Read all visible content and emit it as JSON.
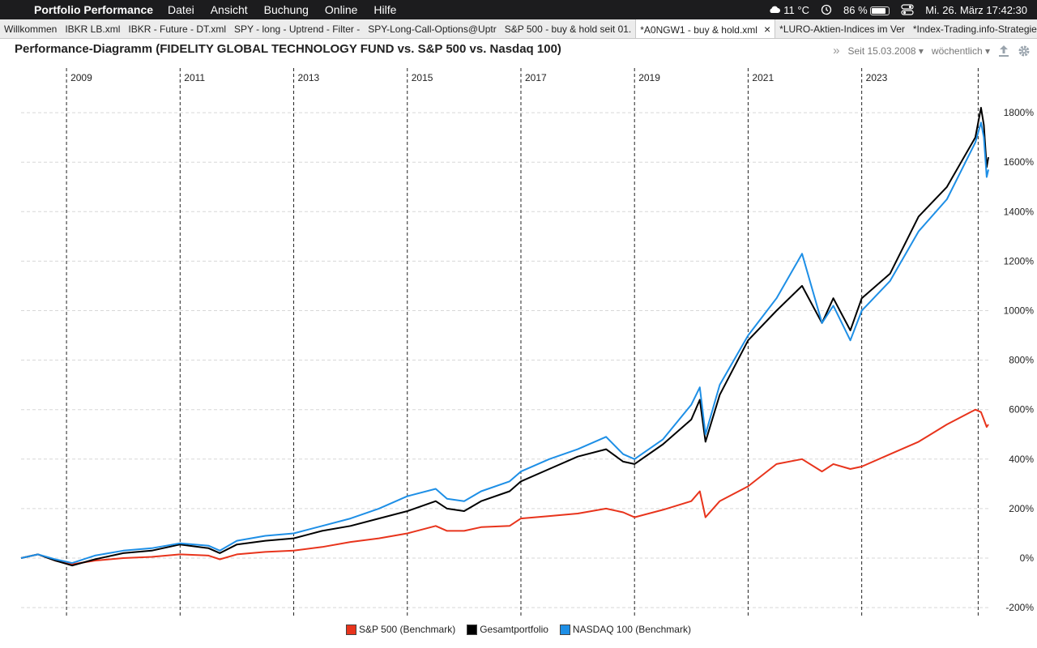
{
  "menubar": {
    "app_name": "Portfolio Performance",
    "menus": [
      "Datei",
      "Ansicht",
      "Buchung",
      "Online",
      "Hilfe"
    ],
    "weather": "11 °C",
    "battery": "86 %",
    "battery_level": 0.86,
    "clock": "Mi. 26. März  17:42:30",
    "icons": [
      "apple-icon",
      "cloud-icon",
      "time-machine-icon",
      "battery-icon",
      "control-center-icon"
    ]
  },
  "tabs": [
    {
      "label": "Willkommen",
      "active": false
    },
    {
      "label": "IBKR LB.xml",
      "active": false
    },
    {
      "label": "IBKR - Future - DT.xml",
      "active": false
    },
    {
      "label": "SPY - long - Uptrend - Filter -",
      "active": false
    },
    {
      "label": "SPY-Long-Call-Options@Uptr",
      "active": false
    },
    {
      "label": "S&P 500 - buy & hold seit 01.",
      "active": false
    },
    {
      "label": "*A0NGW1 - buy & hold.xml",
      "active": true
    },
    {
      "label": "*LURO-Aktien-Indices im Ver",
      "active": false
    },
    {
      "label": "*Index-Trading.info-Strategie",
      "active": false
    }
  ],
  "view": {
    "title": "Performance-Diagramm (FIDELITY GLOBAL TECHNOLOGY FUND vs. S&P 500 vs. Nasdaq 100)",
    "period": "Seit 15.03.2008",
    "interval": "wöchentlich",
    "icons": [
      "expand-icon",
      "dropdown-icon",
      "export-icon",
      "gear-icon"
    ]
  },
  "chart_data": {
    "type": "line",
    "x_unit": "year",
    "xlim": [
      2008.2,
      2025.23
    ],
    "ylim": [
      -200,
      1900
    ],
    "y_ticks": [
      -200,
      0,
      200,
      400,
      600,
      800,
      1000,
      1200,
      1400,
      1600,
      1800
    ],
    "y_tick_labels": [
      "-200%",
      "0%",
      "200%",
      "400%",
      "600%",
      "800%",
      "1000%",
      "1200%",
      "1400%",
      "1600%",
      "1800%"
    ],
    "x_year_lines": [
      2009,
      2011,
      2013,
      2015,
      2017,
      2019,
      2021,
      2023
    ],
    "x_year_labels": [
      "2009",
      "2011",
      "2013",
      "2015",
      "2017",
      "2019",
      "2021",
      "2023"
    ],
    "grid": true,
    "legend_position": "bottom",
    "series": [
      {
        "name": "S&P 500 (Benchmark)",
        "color": "#e8341c",
        "x": [
          2008.2,
          2008.5,
          2008.8,
          2009.1,
          2009.5,
          2010.0,
          2010.5,
          2011.0,
          2011.5,
          2011.7,
          2012.0,
          2012.5,
          2013.0,
          2013.5,
          2014.0,
          2014.5,
          2015.0,
          2015.5,
          2015.7,
          2016.0,
          2016.3,
          2016.8,
          2017.0,
          2017.5,
          2018.0,
          2018.5,
          2018.8,
          2019.0,
          2019.5,
          2020.0,
          2020.15,
          2020.25,
          2020.5,
          2021.0,
          2021.5,
          2021.95,
          2022.3,
          2022.5,
          2022.8,
          2023.0,
          2023.5,
          2024.0,
          2024.5,
          2025.0,
          2025.1,
          2025.15,
          2025.2,
          2025.23
        ],
        "y": [
          0,
          15,
          -10,
          -25,
          -10,
          0,
          5,
          15,
          10,
          -5,
          15,
          25,
          30,
          45,
          65,
          80,
          100,
          130,
          110,
          110,
          125,
          130,
          160,
          170,
          180,
          200,
          185,
          165,
          195,
          230,
          270,
          165,
          230,
          290,
          380,
          400,
          350,
          380,
          360,
          370,
          420,
          470,
          540,
          600,
          590,
          560,
          530,
          540
        ]
      },
      {
        "name": "Gesamtportfolio",
        "color": "#000000",
        "x": [
          2008.2,
          2008.5,
          2008.8,
          2009.1,
          2009.5,
          2010.0,
          2010.5,
          2011.0,
          2011.5,
          2011.7,
          2012.0,
          2012.5,
          2013.0,
          2013.5,
          2014.0,
          2014.5,
          2015.0,
          2015.5,
          2015.7,
          2016.0,
          2016.3,
          2016.8,
          2017.0,
          2017.5,
          2018.0,
          2018.5,
          2018.8,
          2019.0,
          2019.5,
          2020.0,
          2020.15,
          2020.25,
          2020.5,
          2021.0,
          2021.5,
          2021.95,
          2022.3,
          2022.5,
          2022.8,
          2023.0,
          2023.5,
          2024.0,
          2024.5,
          2025.0,
          2025.1,
          2025.15,
          2025.2,
          2025.23
        ],
        "y": [
          0,
          15,
          -10,
          -30,
          -5,
          20,
          30,
          55,
          40,
          20,
          55,
          70,
          80,
          110,
          130,
          160,
          190,
          230,
          200,
          190,
          230,
          270,
          310,
          360,
          410,
          440,
          390,
          380,
          460,
          560,
          640,
          470,
          660,
          880,
          1000,
          1100,
          950,
          1050,
          920,
          1050,
          1150,
          1380,
          1500,
          1700,
          1820,
          1750,
          1580,
          1620
        ]
      },
      {
        "name": "NASDAQ 100 (Benchmark)",
        "color": "#1e8fe6",
        "x": [
          2008.2,
          2008.5,
          2008.8,
          2009.1,
          2009.5,
          2010.0,
          2010.5,
          2011.0,
          2011.5,
          2011.7,
          2012.0,
          2012.5,
          2013.0,
          2013.5,
          2014.0,
          2014.5,
          2015.0,
          2015.5,
          2015.7,
          2016.0,
          2016.3,
          2016.8,
          2017.0,
          2017.5,
          2018.0,
          2018.5,
          2018.8,
          2019.0,
          2019.5,
          2020.0,
          2020.15,
          2020.25,
          2020.5,
          2021.0,
          2021.5,
          2021.95,
          2022.3,
          2022.5,
          2022.8,
          2023.0,
          2023.5,
          2024.0,
          2024.5,
          2025.0,
          2025.1,
          2025.15,
          2025.2,
          2025.23
        ],
        "y": [
          0,
          15,
          -5,
          -20,
          10,
          30,
          40,
          60,
          50,
          30,
          70,
          90,
          100,
          130,
          160,
          200,
          250,
          280,
          240,
          230,
          270,
          310,
          350,
          400,
          440,
          490,
          420,
          400,
          480,
          620,
          690,
          500,
          700,
          900,
          1050,
          1230,
          950,
          1020,
          880,
          1000,
          1120,
          1320,
          1450,
          1680,
          1760,
          1700,
          1540,
          1570
        ]
      }
    ]
  },
  "legend": [
    {
      "label": "S&P 500 (Benchmark)",
      "color": "#e8341c"
    },
    {
      "label": "Gesamtportfolio",
      "color": "#000000"
    },
    {
      "label": "NASDAQ 100 (Benchmark)",
      "color": "#1e8fe6"
    }
  ]
}
